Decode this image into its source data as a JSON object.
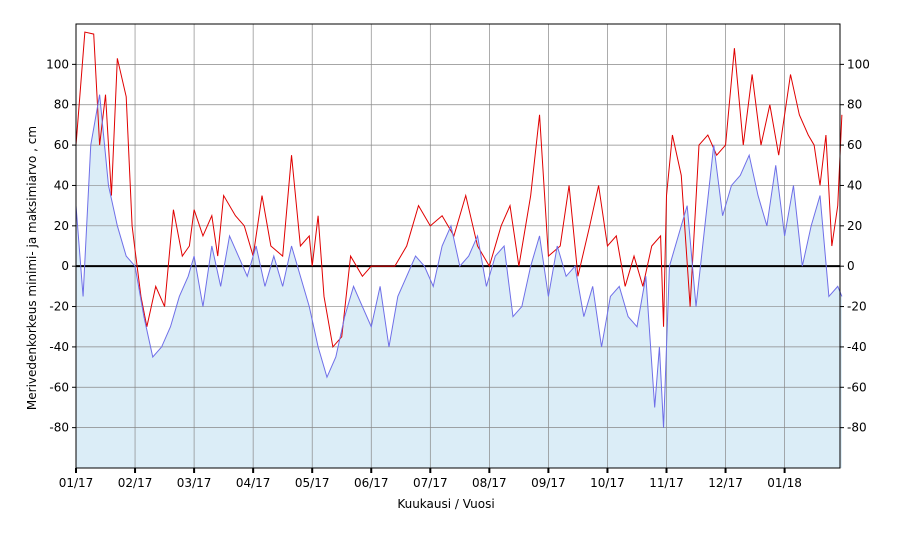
{
  "chart_data": {
    "type": "line",
    "title": "",
    "xlabel": "Kuukausi / Vuosi",
    "ylabel": "Merivedenkorkeus minimi- ja maksimiarvo , cm",
    "ylim": [
      -100,
      120
    ],
    "y_ticks": [
      "100",
      "80",
      "60",
      "40",
      "20",
      "0",
      "-20",
      "-40",
      "-60",
      "-80"
    ],
    "y_tick_values": [
      100,
      80,
      60,
      40,
      20,
      0,
      -20,
      -40,
      -60,
      -80
    ],
    "x_ticks": [
      "01/17",
      "02/17",
      "03/17",
      "04/17",
      "05/17",
      "06/17",
      "07/17",
      "08/17",
      "09/17",
      "10/17",
      "11/17",
      "12/17",
      "01/18"
    ],
    "x_range_months": [
      0,
      12.97
    ],
    "grid": true,
    "zero_line": true,
    "colors": {
      "max_line": "#e00000",
      "min_line": "#6f6fe8",
      "area_fill": "#dbedf7",
      "zero_line": "#000000",
      "grid": "#888888"
    },
    "series": [
      {
        "key": "max",
        "x_months": [
          0,
          0.15,
          0.3,
          0.4,
          0.5,
          0.6,
          0.7,
          0.85,
          0.95,
          1.0,
          1.1,
          1.2,
          1.35,
          1.5,
          1.65,
          1.8,
          1.92,
          2.0,
          2.15,
          2.3,
          2.4,
          2.5,
          2.7,
          2.85,
          3.0,
          3.15,
          3.3,
          3.5,
          3.65,
          3.8,
          3.95,
          4.0,
          4.1,
          4.2,
          4.35,
          4.5,
          4.65,
          4.85,
          5.0,
          5.2,
          5.4,
          5.6,
          5.8,
          6.0,
          6.2,
          6.4,
          6.6,
          6.8,
          7.0,
          7.2,
          7.35,
          7.5,
          7.7,
          7.85,
          8.0,
          8.2,
          8.35,
          8.5,
          8.7,
          8.85,
          9.0,
          9.15,
          9.3,
          9.45,
          9.6,
          9.75,
          9.9,
          9.95,
          10.0,
          10.1,
          10.25,
          10.4,
          10.55,
          10.7,
          10.85,
          11.0,
          11.15,
          11.3,
          11.45,
          11.6,
          11.75,
          11.9,
          12.0,
          12.1,
          12.25,
          12.4,
          12.5,
          12.6,
          12.7,
          12.8,
          12.9,
          12.97
        ],
        "values": [
          60,
          116,
          115,
          60,
          85,
          35,
          103,
          84,
          20,
          8,
          -15,
          -30,
          -10,
          -20,
          28,
          5,
          10,
          28,
          15,
          25,
          5,
          35,
          25,
          20,
          5,
          35,
          10,
          5,
          55,
          10,
          15,
          0,
          25,
          -15,
          -40,
          -35,
          5,
          -5,
          0,
          0,
          0,
          10,
          30,
          20,
          25,
          15,
          35,
          10,
          0,
          20,
          30,
          0,
          35,
          75,
          5,
          10,
          40,
          -5,
          20,
          40,
          10,
          15,
          -10,
          5,
          -10,
          10,
          15,
          -30,
          35,
          65,
          45,
          -20,
          60,
          65,
          55,
          60,
          108,
          60,
          95,
          60,
          80,
          55,
          75,
          95,
          75,
          65,
          60,
          40,
          65,
          10,
          30,
          75
        ]
      },
      {
        "key": "min",
        "x_months": [
          0,
          0.12,
          0.25,
          0.4,
          0.55,
          0.7,
          0.85,
          1.0,
          1.15,
          1.3,
          1.45,
          1.6,
          1.75,
          1.9,
          2.0,
          2.15,
          2.3,
          2.45,
          2.6,
          2.75,
          2.9,
          3.05,
          3.2,
          3.35,
          3.5,
          3.65,
          3.8,
          3.95,
          4.1,
          4.25,
          4.4,
          4.55,
          4.7,
          4.85,
          5.0,
          5.15,
          5.3,
          5.45,
          5.6,
          5.75,
          5.9,
          6.05,
          6.2,
          6.35,
          6.5,
          6.65,
          6.8,
          6.95,
          7.1,
          7.25,
          7.4,
          7.55,
          7.7,
          7.85,
          8.0,
          8.15,
          8.3,
          8.45,
          8.6,
          8.75,
          8.9,
          9.05,
          9.2,
          9.35,
          9.5,
          9.65,
          9.8,
          9.88,
          9.95,
          10.05,
          10.2,
          10.35,
          10.5,
          10.65,
          10.8,
          10.95,
          11.1,
          11.25,
          11.4,
          11.55,
          11.7,
          11.85,
          12.0,
          12.15,
          12.3,
          12.45,
          12.6,
          12.75,
          12.9,
          12.97
        ],
        "values": [
          30,
          -15,
          60,
          85,
          40,
          20,
          5,
          0,
          -25,
          -45,
          -40,
          -30,
          -15,
          -5,
          5,
          -20,
          10,
          -10,
          15,
          5,
          -5,
          10,
          -10,
          5,
          -10,
          10,
          -5,
          -20,
          -40,
          -55,
          -45,
          -25,
          -10,
          -20,
          -30,
          -10,
          -40,
          -15,
          -5,
          5,
          0,
          -10,
          10,
          20,
          0,
          5,
          15,
          -10,
          5,
          10,
          -25,
          -20,
          0,
          15,
          -15,
          10,
          -5,
          0,
          -25,
          -10,
          -40,
          -15,
          -10,
          -25,
          -30,
          -5,
          -70,
          -40,
          -80,
          0,
          15,
          30,
          -20,
          20,
          60,
          25,
          40,
          45,
          55,
          35,
          20,
          50,
          15,
          40,
          0,
          20,
          35,
          -15,
          -10,
          -15
        ]
      }
    ]
  }
}
